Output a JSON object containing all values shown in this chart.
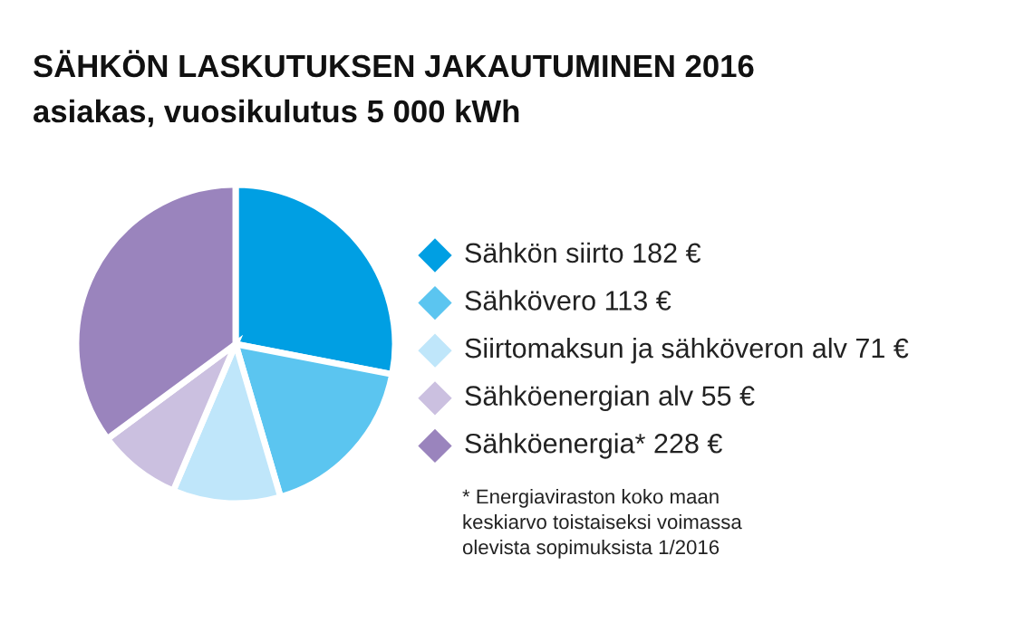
{
  "chart_data": {
    "type": "pie",
    "title": "SÄHKÖN LASKUTUKSEN JAKAUTUMINEN 2016",
    "subtitle": "asiakas, vuosikulutus 5 000 kWh",
    "categories": [
      "Sähkön siirto",
      "Sähkövero",
      "Siirtomaksun ja sähköveron alv",
      "Sähköenergian alv",
      "Sähköenergia*"
    ],
    "values": [
      182,
      113,
      71,
      55,
      228
    ],
    "value_labels": [
      "182 €",
      "113 €",
      "71 €",
      "55 €",
      "228 €"
    ],
    "colors": [
      "#009fe3",
      "#5bc5f0",
      "#bfe6fa",
      "#cbc0e0",
      "#9a84bd"
    ],
    "legend": "right",
    "marker": "diamond",
    "annotations": [
      "* Energiaviraston koko maan\nkeskiarvo toistaiseksi voimassa\nolevista sopimuksista 1/2016"
    ]
  }
}
